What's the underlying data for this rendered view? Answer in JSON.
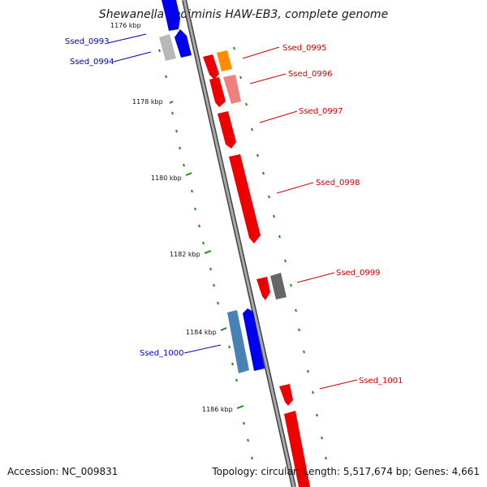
{
  "title": "Shewanella sediminis HAW-EB3, complete genome",
  "footer": {
    "accession": "Accession: NC_009831",
    "summary": "Topology: circular; Length: 5,517,674 bp; Genes: 4,661"
  },
  "colors": {
    "backbone": "#8c8c8c",
    "tick": "#1f8a1f",
    "forward_label": "#0000cc",
    "reverse_label": "#dd0000"
  },
  "scale_labels": [
    "1176 kbp",
    "1178 kbp",
    "1180 kbp",
    "1182 kbp",
    "1184 kbp",
    "1186 kbp"
  ],
  "gene_labels": [
    {
      "id": "Ssed_0993",
      "strand": "forward"
    },
    {
      "id": "Ssed_0994",
      "strand": "forward"
    },
    {
      "id": "Ssed_0995",
      "strand": "reverse"
    },
    {
      "id": "Ssed_0996",
      "strand": "reverse"
    },
    {
      "id": "Ssed_0997",
      "strand": "reverse"
    },
    {
      "id": "Ssed_0998",
      "strand": "reverse"
    },
    {
      "id": "Ssed_0999",
      "strand": "reverse"
    },
    {
      "id": "Ssed_1000",
      "strand": "forward"
    },
    {
      "id": "Ssed_1001",
      "strand": "reverse"
    }
  ]
}
